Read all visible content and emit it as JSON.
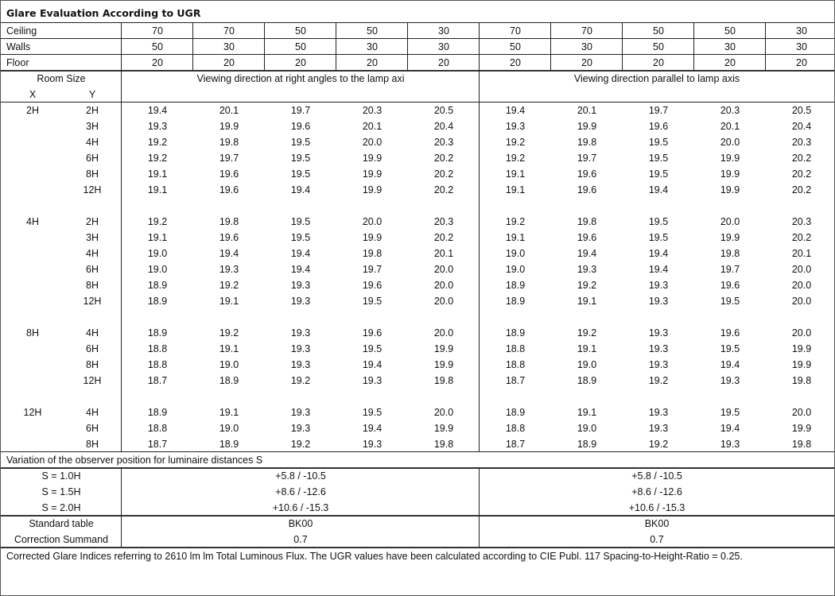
{
  "title": "Glare Evaluation According to UGR",
  "reflectances": [
    {
      "label": "Ceiling",
      "values": [
        "70",
        "70",
        "50",
        "50",
        "30",
        "70",
        "70",
        "50",
        "50",
        "30"
      ]
    },
    {
      "label": "Walls",
      "values": [
        "50",
        "30",
        "50",
        "30",
        "30",
        "50",
        "30",
        "50",
        "30",
        "30"
      ]
    },
    {
      "label": "Floor",
      "values": [
        "20",
        "20",
        "20",
        "20",
        "20",
        "20",
        "20",
        "20",
        "20",
        "20"
      ]
    }
  ],
  "room_size_label": "Room Size",
  "x_label": "X",
  "y_label": "Y",
  "direction_headers": [
    "Viewing direction at right angles to the lamp axi",
    "Viewing direction parallel to lamp axis"
  ],
  "groups": [
    {
      "x": "2H",
      "rows": [
        {
          "y": "2H",
          "values": [
            "19.4",
            "20.1",
            "19.7",
            "20.3",
            "20.5",
            "19.4",
            "20.1",
            "19.7",
            "20.3",
            "20.5"
          ]
        },
        {
          "y": "3H",
          "values": [
            "19.3",
            "19.9",
            "19.6",
            "20.1",
            "20.4",
            "19.3",
            "19.9",
            "19.6",
            "20.1",
            "20.4"
          ]
        },
        {
          "y": "4H",
          "values": [
            "19.2",
            "19.8",
            "19.5",
            "20.0",
            "20.3",
            "19.2",
            "19.8",
            "19.5",
            "20.0",
            "20.3"
          ]
        },
        {
          "y": "6H",
          "values": [
            "19.2",
            "19.7",
            "19.5",
            "19.9",
            "20.2",
            "19.2",
            "19.7",
            "19.5",
            "19.9",
            "20.2"
          ]
        },
        {
          "y": "8H",
          "values": [
            "19.1",
            "19.6",
            "19.5",
            "19.9",
            "20.2",
            "19.1",
            "19.6",
            "19.5",
            "19.9",
            "20.2"
          ]
        },
        {
          "y": "12H",
          "values": [
            "19.1",
            "19.6",
            "19.4",
            "19.9",
            "20.2",
            "19.1",
            "19.6",
            "19.4",
            "19.9",
            "20.2"
          ]
        }
      ]
    },
    {
      "x": "4H",
      "rows": [
        {
          "y": "2H",
          "values": [
            "19.2",
            "19.8",
            "19.5",
            "20.0",
            "20.3",
            "19.2",
            "19.8",
            "19.5",
            "20.0",
            "20.3"
          ]
        },
        {
          "y": "3H",
          "values": [
            "19.1",
            "19.6",
            "19.5",
            "19.9",
            "20.2",
            "19.1",
            "19.6",
            "19.5",
            "19.9",
            "20.2"
          ]
        },
        {
          "y": "4H",
          "values": [
            "19.0",
            "19.4",
            "19.4",
            "19.8",
            "20.1",
            "19.0",
            "19.4",
            "19.4",
            "19.8",
            "20.1"
          ]
        },
        {
          "y": "6H",
          "values": [
            "19.0",
            "19.3",
            "19.4",
            "19.7",
            "20.0",
            "19.0",
            "19.3",
            "19.4",
            "19.7",
            "20.0"
          ]
        },
        {
          "y": "8H",
          "values": [
            "18.9",
            "19.2",
            "19.3",
            "19.6",
            "20.0",
            "18.9",
            "19.2",
            "19.3",
            "19.6",
            "20.0"
          ]
        },
        {
          "y": "12H",
          "values": [
            "18.9",
            "19.1",
            "19.3",
            "19.5",
            "20.0",
            "18.9",
            "19.1",
            "19.3",
            "19.5",
            "20.0"
          ]
        }
      ]
    },
    {
      "x": "8H",
      "rows": [
        {
          "y": "4H",
          "values": [
            "18.9",
            "19.2",
            "19.3",
            "19.6",
            "20.0",
            "18.9",
            "19.2",
            "19.3",
            "19.6",
            "20.0"
          ]
        },
        {
          "y": "6H",
          "values": [
            "18.8",
            "19.1",
            "19.3",
            "19.5",
            "19.9",
            "18.8",
            "19.1",
            "19.3",
            "19.5",
            "19.9"
          ]
        },
        {
          "y": "8H",
          "values": [
            "18.8",
            "19.0",
            "19.3",
            "19.4",
            "19.9",
            "18.8",
            "19.0",
            "19.3",
            "19.4",
            "19.9"
          ]
        },
        {
          "y": "12H",
          "values": [
            "18.7",
            "18.9",
            "19.2",
            "19.3",
            "19.8",
            "18.7",
            "18.9",
            "19.2",
            "19.3",
            "19.8"
          ]
        }
      ]
    },
    {
      "x": "12H",
      "rows": [
        {
          "y": "4H",
          "values": [
            "18.9",
            "19.1",
            "19.3",
            "19.5",
            "20.0",
            "18.9",
            "19.1",
            "19.3",
            "19.5",
            "20.0"
          ]
        },
        {
          "y": "6H",
          "values": [
            "18.8",
            "19.0",
            "19.3",
            "19.4",
            "19.9",
            "18.8",
            "19.0",
            "19.3",
            "19.4",
            "19.9"
          ]
        },
        {
          "y": "8H",
          "values": [
            "18.7",
            "18.9",
            "19.2",
            "19.3",
            "19.8",
            "18.7",
            "18.9",
            "19.2",
            "19.3",
            "19.8"
          ]
        }
      ]
    }
  ],
  "variation_title": "Variation of the observer position for luminaire distances S",
  "variations": [
    {
      "label": "S = 1.0H",
      "left": "+5.8 / -10.5",
      "right": "+5.8 / -10.5"
    },
    {
      "label": "S = 1.5H",
      "left": "+8.6 / -12.6",
      "right": "+8.6 / -12.6"
    },
    {
      "label": "S = 2.0H",
      "left": "+10.6 / -15.3",
      "right": "+10.6 / -15.3"
    }
  ],
  "standard_table": {
    "label": "Standard table",
    "left": "BK00",
    "right": "BK00"
  },
  "correction_summand": {
    "label": "Correction Summand",
    "left": "0.7",
    "right": "0.7"
  },
  "footer": "Corrected Glare Indices referring to 2610 lm lm Total Luminous Flux. The UGR values have been calculated according to CIE Publ. 117    Spacing-to-Height-Ratio = 0.25."
}
